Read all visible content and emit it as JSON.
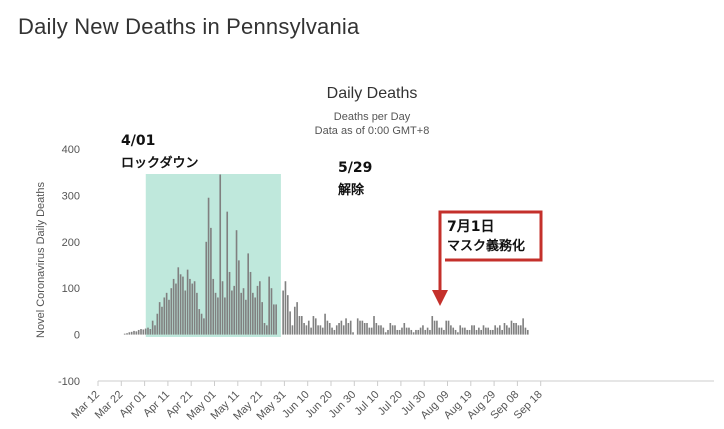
{
  "page": {
    "title": "Daily New Deaths in Pennsylvania"
  },
  "chart_data": {
    "type": "bar",
    "title": "Daily Deaths",
    "subtitle_line1": "Deaths per Day",
    "subtitle_line2": "Data as of 0:00 GMT+8",
    "ylabel": "Novel Coronavirus Daily Deaths",
    "xlabel": "",
    "ylim": [
      -100,
      400
    ],
    "y_ticks": [
      -100,
      0,
      100,
      200,
      300,
      400
    ],
    "grid": false,
    "start_date": "Mar 12",
    "x_tick_labels": [
      "Mar 12",
      "Mar 22",
      "Apr 01",
      "Apr 11",
      "Apr 21",
      "May 01",
      "May 11",
      "May 21",
      "May 31",
      "Jun 10",
      "Jun 20",
      "Jun 30",
      "Jul 10",
      "Jul 20",
      "Jul 30",
      "Aug 09",
      "Aug 19",
      "Aug 29",
      "Sep 08",
      "Sep 18"
    ],
    "bar_color": "#808080",
    "values": [
      0,
      0,
      0,
      0,
      0,
      0,
      0,
      0,
      0,
      0,
      0,
      2,
      3,
      5,
      6,
      8,
      7,
      10,
      12,
      11,
      13,
      15,
      12,
      30,
      20,
      45,
      70,
      60,
      80,
      90,
      75,
      100,
      120,
      110,
      145,
      130,
      125,
      95,
      140,
      120,
      110,
      115,
      90,
      55,
      45,
      35,
      200,
      295,
      230,
      120,
      90,
      80,
      345,
      115,
      80,
      265,
      135,
      95,
      105,
      225,
      160,
      90,
      100,
      75,
      175,
      135,
      90,
      80,
      105,
      115,
      70,
      25,
      20,
      125,
      100,
      65,
      65,
      0,
      0,
      95,
      115,
      85,
      50,
      20,
      60,
      70,
      40,
      40,
      25,
      20,
      30,
      15,
      40,
      35,
      20,
      20,
      15,
      45,
      30,
      25,
      15,
      10,
      20,
      25,
      30,
      20,
      35,
      25,
      30,
      5,
      0,
      35,
      30,
      30,
      25,
      25,
      15,
      15,
      40,
      25,
      20,
      20,
      15,
      5,
      10,
      25,
      20,
      20,
      10,
      10,
      15,
      25,
      15,
      15,
      10,
      5,
      10,
      10,
      15,
      20,
      10,
      15,
      10,
      40,
      30,
      30,
      15,
      15,
      10,
      30,
      30,
      20,
      15,
      10,
      5,
      20,
      15,
      15,
      10,
      10,
      20,
      20,
      10,
      15,
      10,
      20,
      15,
      15,
      10,
      10,
      20,
      15,
      20,
      10,
      25,
      20,
      15,
      30,
      25,
      25,
      20,
      20,
      35,
      15,
      10
    ]
  },
  "annotations": {
    "lockdown_date": "4/01",
    "lockdown_text": "ロックダウン",
    "lift_date": "5/29",
    "lift_text": "解除",
    "mask_date": "7月1日",
    "mask_text": "マスク義務化",
    "shade_color": "#bfe8dc",
    "arrow_color": "#c4302b"
  }
}
